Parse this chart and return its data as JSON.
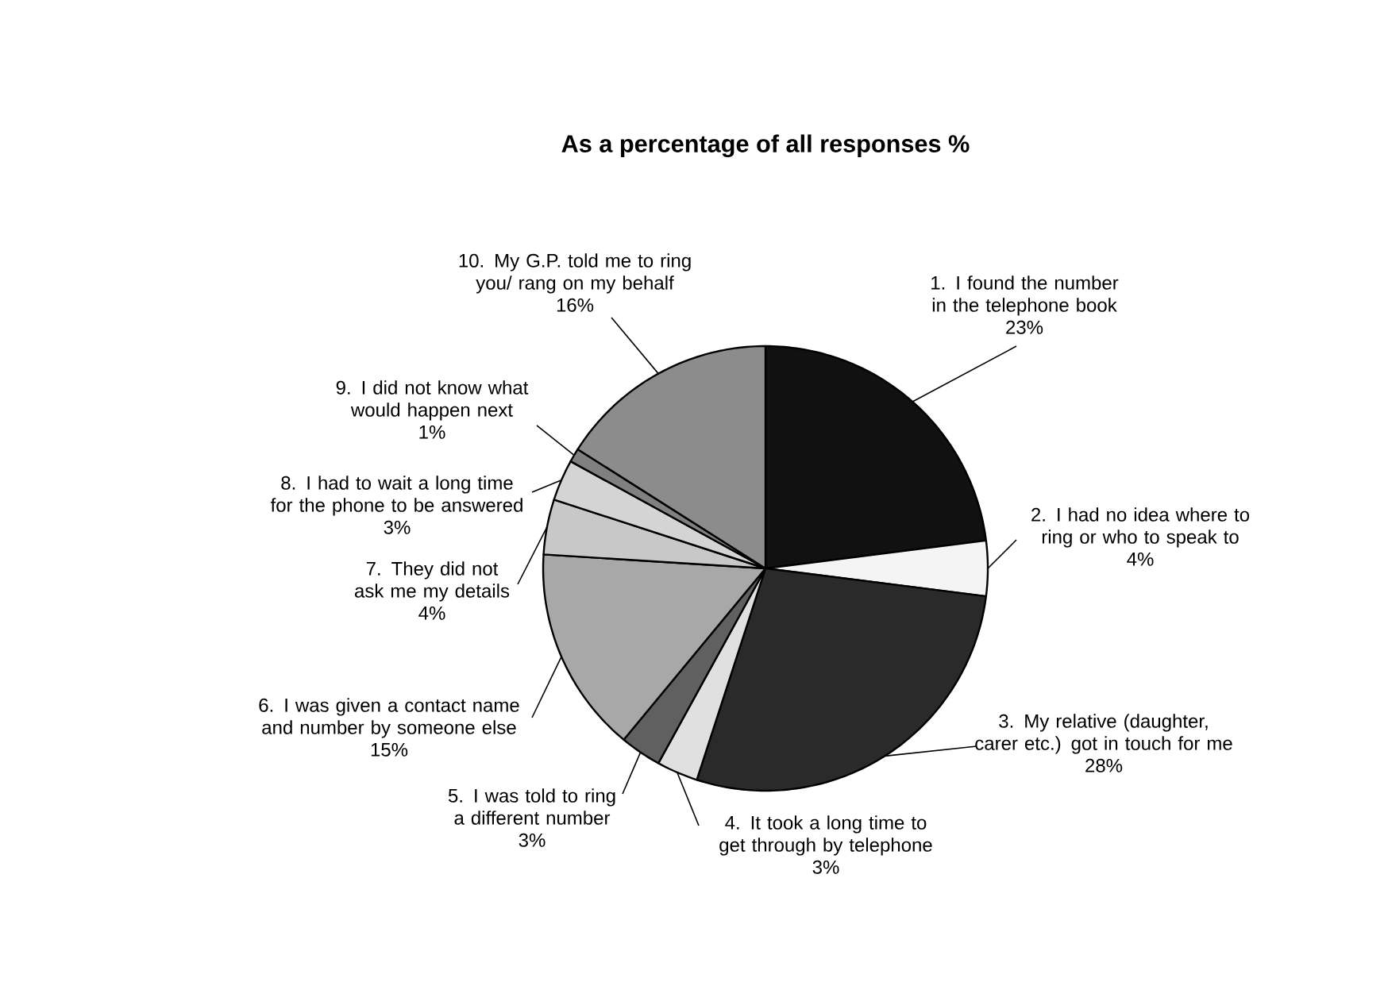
{
  "chart_data": {
    "type": "pie",
    "title": "As a percentage of all responses %",
    "categories": [
      "1. I found the number in the telephone book",
      "2. I had no idea where to ring or who to speak to",
      "3. My relative (daughter, carer etc.) got in touch for me",
      "4. It took a long time to get through by telephone",
      "5. I was  told to ring a different number",
      "6. I was given a contact name and number by someone else",
      "7. They did not ask me my details",
      "8. I had to wait a long time for the phone to be answered",
      "9. I did not know what would happen next",
      "10. My G.P. told me to ring you/ rang on my behalf"
    ],
    "values": [
      23,
      4,
      28,
      3,
      3,
      15,
      4,
      3,
      1,
      16
    ],
    "value_labels": [
      "23%",
      "4%",
      "28%",
      "3%",
      "3%",
      "15%",
      "4%",
      "3%",
      "1%",
      "16%"
    ],
    "colors": [
      "#111111",
      "#f4f4f4",
      "#2a2a2a",
      "#e0e0e0",
      "#606060",
      "#a8a8a8",
      "#c8c8c8",
      "#d4d4d4",
      "#808080",
      "#8c8c8c"
    ]
  }
}
